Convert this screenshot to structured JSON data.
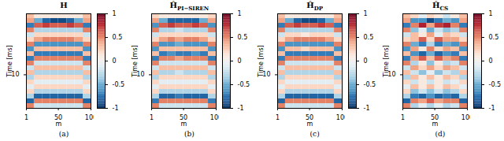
{
  "chart_data": [
    {
      "type": "heatmap",
      "title": "H",
      "title_subscript": "",
      "caption": "(a)",
      "xlabel": "m",
      "ylabel": "Time [ms]",
      "xlim": [
        1,
        100
      ],
      "xticks": [
        1,
        50,
        100
      ],
      "ylim": [
        0,
        15.5
      ],
      "yticks": [
        10
      ],
      "x_bins": [
        1,
        13,
        26,
        38,
        50,
        63,
        75,
        88,
        100
      ],
      "y_bins": [
        0,
        0.775,
        1.55,
        2.325,
        3.1,
        3.875,
        4.65,
        5.425,
        6.2,
        6.975,
        7.75,
        8.525,
        9.3,
        10.075,
        10.85,
        11.625,
        12.4,
        13.175,
        13.95,
        14.725,
        15.5
      ],
      "values": [
        [
          0.3,
          0.1,
          0.1,
          0.1,
          0.1,
          0.1,
          0.1,
          0.3
        ],
        [
          0.4,
          -0.5,
          -0.8,
          -0.9,
          -0.9,
          -0.8,
          -0.5,
          0.4
        ],
        [
          -0.7,
          0.6,
          0.7,
          0.6,
          0.6,
          0.7,
          0.6,
          -0.7
        ],
        [
          0.5,
          -0.3,
          -0.3,
          -0.3,
          -0.3,
          -0.3,
          -0.3,
          0.5
        ],
        [
          -0.2,
          0.2,
          0.2,
          0.2,
          0.2,
          0.2,
          0.2,
          -0.2
        ],
        [
          0.2,
          0.4,
          0.5,
          0.5,
          0.5,
          0.5,
          0.4,
          0.2
        ],
        [
          0.5,
          -0.6,
          -0.6,
          -0.6,
          -0.6,
          -0.6,
          -0.6,
          0.5
        ],
        [
          -0.6,
          0.3,
          0.3,
          0.3,
          0.3,
          0.3,
          0.3,
          -0.6
        ],
        [
          0.3,
          -0.7,
          -0.7,
          -0.7,
          -0.7,
          -0.7,
          -0.7,
          0.3
        ],
        [
          -0.7,
          0.5,
          0.5,
          0.5,
          0.5,
          0.5,
          0.5,
          -0.7
        ],
        [
          0.5,
          -0.2,
          -0.2,
          -0.2,
          -0.2,
          -0.2,
          -0.2,
          0.5
        ],
        [
          -0.2,
          0.3,
          0.3,
          0.3,
          0.3,
          0.3,
          0.3,
          -0.2
        ],
        [
          0.3,
          -0.3,
          -0.3,
          -0.3,
          -0.3,
          -0.3,
          -0.3,
          0.3
        ],
        [
          -0.3,
          0.2,
          0.2,
          0.2,
          0.2,
          0.2,
          0.2,
          -0.3
        ],
        [
          0.2,
          -0.1,
          -0.1,
          -0.1,
          -0.1,
          -0.1,
          -0.1,
          0.2
        ],
        [
          -0.1,
          0.2,
          0.2,
          0.2,
          0.2,
          0.2,
          0.2,
          -0.1
        ],
        [
          0.2,
          -0.3,
          -0.3,
          -0.3,
          -0.3,
          -0.3,
          -0.3,
          0.2
        ],
        [
          -0.3,
          -0.8,
          -0.8,
          -0.8,
          -0.8,
          -0.8,
          -0.8,
          -0.3
        ],
        [
          -0.8,
          0.5,
          0.5,
          0.5,
          0.5,
          0.5,
          0.5,
          -0.8
        ],
        [
          0.5,
          -0.2,
          -0.2,
          -0.2,
          -0.2,
          -0.2,
          -0.2,
          0.5
        ]
      ],
      "colorbar": {
        "range": [
          -1,
          1
        ],
        "ticks": [
          -1,
          -0.5,
          0,
          0.5,
          1
        ]
      }
    },
    {
      "type": "heatmap",
      "title": "Ĥ",
      "title_subscript": "PI−SIREN",
      "caption": "(b)",
      "xlabel": "m",
      "ylabel": "Time [ms]",
      "xlim": [
        1,
        100
      ],
      "xticks": [
        1,
        50,
        100
      ],
      "ylim": [
        0,
        15.5
      ],
      "yticks": [
        10
      ],
      "x_bins": [
        1,
        13,
        26,
        38,
        50,
        63,
        75,
        88,
        100
      ],
      "y_bins": [
        0,
        0.775,
        1.55,
        2.325,
        3.1,
        3.875,
        4.65,
        5.425,
        6.2,
        6.975,
        7.75,
        8.525,
        9.3,
        10.075,
        10.85,
        11.625,
        12.4,
        13.175,
        13.95,
        14.725,
        15.5
      ],
      "values": [
        [
          0.2,
          0.1,
          0.1,
          0.1,
          0.1,
          0.1,
          0.1,
          0.2
        ],
        [
          0.4,
          -0.5,
          -0.8,
          -0.8,
          -0.8,
          -0.8,
          -0.5,
          0.4
        ],
        [
          -0.6,
          0.6,
          0.7,
          0.6,
          0.6,
          0.7,
          0.6,
          -0.6
        ],
        [
          0.5,
          -0.3,
          -0.3,
          -0.2,
          -0.3,
          -0.3,
          -0.3,
          0.5
        ],
        [
          -0.2,
          0.2,
          0.2,
          0.2,
          0.2,
          0.2,
          0.2,
          -0.2
        ],
        [
          0.2,
          0.4,
          0.5,
          0.4,
          0.5,
          0.5,
          0.4,
          0.2
        ],
        [
          0.5,
          -0.6,
          -0.6,
          -0.5,
          -0.6,
          -0.6,
          -0.6,
          0.5
        ],
        [
          -0.6,
          0.3,
          0.3,
          0.3,
          0.3,
          0.3,
          0.3,
          -0.6
        ],
        [
          0.3,
          -0.7,
          -0.6,
          -0.7,
          -0.7,
          -0.6,
          -0.7,
          0.3
        ],
        [
          -0.7,
          0.5,
          0.5,
          0.4,
          0.5,
          0.5,
          0.5,
          -0.7
        ],
        [
          0.5,
          -0.2,
          -0.2,
          -0.2,
          -0.2,
          -0.2,
          -0.2,
          0.5
        ],
        [
          -0.2,
          0.3,
          0.3,
          0.3,
          0.3,
          0.3,
          0.3,
          -0.2
        ],
        [
          0.3,
          -0.3,
          -0.3,
          -0.2,
          -0.3,
          -0.3,
          -0.3,
          0.3
        ],
        [
          -0.3,
          0.2,
          0.2,
          0.2,
          0.2,
          0.2,
          0.2,
          -0.3
        ],
        [
          0.2,
          -0.1,
          -0.1,
          -0.1,
          -0.1,
          -0.1,
          -0.1,
          0.2
        ],
        [
          -0.1,
          0.2,
          0.2,
          0.2,
          0.2,
          0.2,
          0.2,
          -0.1
        ],
        [
          0.2,
          -0.3,
          -0.3,
          -0.3,
          -0.3,
          -0.3,
          -0.3,
          0.2
        ],
        [
          -0.3,
          -0.8,
          -0.8,
          -0.7,
          -0.8,
          -0.8,
          -0.8,
          -0.3
        ],
        [
          -0.7,
          0.5,
          0.5,
          0.5,
          0.5,
          0.5,
          0.5,
          -0.7
        ],
        [
          0.5,
          -0.2,
          -0.2,
          -0.2,
          -0.2,
          -0.2,
          -0.2,
          0.5
        ]
      ],
      "colorbar": {
        "range": [
          -1,
          1
        ],
        "ticks": [
          -1,
          -0.5,
          0,
          0.5,
          1
        ]
      }
    },
    {
      "type": "heatmap",
      "title": "Ĥ",
      "title_subscript": "DP",
      "caption": "(c)",
      "xlabel": "m",
      "ylabel": "Time [ms]",
      "xlim": [
        1,
        100
      ],
      "xticks": [
        1,
        50,
        100
      ],
      "ylim": [
        0,
        15.5
      ],
      "yticks": [
        10
      ],
      "x_bins": [
        1,
        13,
        26,
        38,
        50,
        63,
        75,
        88,
        100
      ],
      "y_bins": [
        0,
        0.775,
        1.55,
        2.325,
        3.1,
        3.875,
        4.65,
        5.425,
        6.2,
        6.975,
        7.75,
        8.525,
        9.3,
        10.075,
        10.85,
        11.625,
        12.4,
        13.175,
        13.95,
        14.725,
        15.5
      ],
      "values": [
        [
          0.3,
          0.1,
          0.1,
          0.1,
          0.1,
          0.1,
          0.1,
          0.3
        ],
        [
          0.4,
          -0.5,
          -0.8,
          -0.9,
          -0.9,
          -0.8,
          -0.5,
          0.4
        ],
        [
          -0.7,
          0.6,
          0.7,
          0.6,
          0.6,
          0.7,
          0.6,
          -0.7
        ],
        [
          0.5,
          -0.3,
          -0.3,
          -0.3,
          -0.3,
          -0.3,
          -0.3,
          0.5
        ],
        [
          -0.2,
          0.2,
          0.2,
          0.1,
          0.2,
          0.2,
          0.2,
          -0.2
        ],
        [
          0.2,
          0.4,
          0.5,
          0.5,
          0.5,
          0.5,
          0.4,
          0.2
        ],
        [
          0.5,
          -0.6,
          -0.6,
          -0.6,
          -0.6,
          -0.6,
          -0.6,
          0.5
        ],
        [
          -0.6,
          0.3,
          0.3,
          0.2,
          0.3,
          0.3,
          0.3,
          -0.6
        ],
        [
          0.3,
          -0.7,
          -0.7,
          -0.7,
          -0.7,
          -0.7,
          -0.7,
          0.3
        ],
        [
          -0.7,
          0.5,
          0.5,
          0.5,
          0.5,
          0.5,
          0.5,
          -0.7
        ],
        [
          0.5,
          -0.2,
          -0.2,
          -0.2,
          -0.2,
          -0.2,
          -0.2,
          0.5
        ],
        [
          -0.2,
          0.3,
          0.3,
          0.3,
          0.3,
          0.3,
          0.3,
          -0.2
        ],
        [
          0.3,
          -0.3,
          -0.3,
          -0.3,
          -0.3,
          -0.3,
          -0.3,
          0.3
        ],
        [
          -0.3,
          0.2,
          0.2,
          0.2,
          0.2,
          0.2,
          0.2,
          -0.3
        ],
        [
          0.2,
          -0.1,
          -0.1,
          -0.1,
          -0.1,
          -0.1,
          -0.1,
          0.2
        ],
        [
          -0.1,
          0.2,
          0.2,
          0.2,
          0.2,
          0.2,
          0.2,
          -0.1
        ],
        [
          0.2,
          -0.3,
          -0.3,
          -0.3,
          -0.3,
          -0.3,
          -0.3,
          0.2
        ],
        [
          -0.3,
          -0.8,
          -0.8,
          -0.8,
          -0.8,
          -0.8,
          -0.8,
          -0.3
        ],
        [
          -0.8,
          0.5,
          0.5,
          0.5,
          0.5,
          0.5,
          0.5,
          -0.8
        ],
        [
          0.5,
          -0.2,
          -0.2,
          -0.2,
          -0.2,
          -0.2,
          -0.2,
          0.5
        ]
      ],
      "colorbar": {
        "range": [
          -1,
          1
        ],
        "ticks": [
          -1,
          -0.5,
          0,
          0.5,
          1
        ]
      }
    },
    {
      "type": "heatmap",
      "title": "Ĥ",
      "title_subscript": "CS",
      "caption": "(d)",
      "xlabel": "m",
      "ylabel": "Time [ms]",
      "xlim": [
        1,
        100
      ],
      "xticks": [
        1,
        50,
        100
      ],
      "ylim": [
        0,
        15.5
      ],
      "yticks": [
        10
      ],
      "x_bins": [
        1,
        13,
        26,
        38,
        50,
        63,
        75,
        88,
        100
      ],
      "y_bins": [
        0,
        0.775,
        1.55,
        2.325,
        3.1,
        3.875,
        4.65,
        5.425,
        6.2,
        6.975,
        7.75,
        8.525,
        9.3,
        10.075,
        10.85,
        11.625,
        12.4,
        13.175,
        13.95,
        14.725,
        15.5
      ],
      "values": [
        [
          0.3,
          0.2,
          -0.1,
          0.2,
          0.1,
          -0.2,
          0.1,
          0.3
        ],
        [
          0.4,
          -0.6,
          -0.6,
          -0.9,
          -0.7,
          -0.5,
          -0.6,
          0.4
        ],
        [
          -0.7,
          0.5,
          0.8,
          0.4,
          0.7,
          0.8,
          0.5,
          -0.7
        ],
        [
          0.5,
          -0.4,
          -0.1,
          -0.5,
          -0.2,
          -0.4,
          -0.3,
          0.5
        ],
        [
          -0.2,
          0.3,
          0.1,
          0.4,
          -0.1,
          0.3,
          0.2,
          -0.2
        ],
        [
          0.2,
          0.3,
          0.6,
          0.2,
          0.6,
          0.4,
          0.4,
          0.2
        ],
        [
          0.5,
          -0.5,
          -0.7,
          -0.3,
          -0.7,
          -0.5,
          -0.6,
          0.5
        ],
        [
          -0.6,
          0.4,
          0.1,
          0.5,
          0.2,
          0.4,
          0.3,
          -0.6
        ],
        [
          0.3,
          -0.6,
          -0.8,
          -0.5,
          -0.8,
          -0.6,
          -0.7,
          0.3
        ],
        [
          -0.7,
          0.4,
          0.6,
          0.3,
          0.6,
          0.4,
          0.5,
          -0.7
        ],
        [
          0.5,
          -0.3,
          0.1,
          -0.4,
          0.1,
          -0.3,
          -0.2,
          0.5
        ],
        [
          -0.2,
          0.4,
          0.2,
          0.4,
          0.2,
          0.4,
          0.3,
          -0.2
        ],
        [
          0.3,
          -0.2,
          -0.4,
          -0.1,
          -0.4,
          -0.2,
          -0.3,
          0.3
        ],
        [
          -0.3,
          0.3,
          0.1,
          0.3,
          0.1,
          0.3,
          0.2,
          -0.3
        ],
        [
          0.2,
          -0.2,
          0.1,
          -0.2,
          0.1,
          -0.2,
          -0.1,
          0.2
        ],
        [
          -0.1,
          0.3,
          0.1,
          0.3,
          0.1,
          0.3,
          0.2,
          -0.1
        ],
        [
          0.2,
          -0.4,
          -0.2,
          -0.4,
          -0.2,
          -0.4,
          -0.3,
          0.2
        ],
        [
          -0.3,
          -0.7,
          -0.8,
          -0.6,
          -0.8,
          -0.7,
          -0.8,
          -0.3
        ],
        [
          -0.8,
          0.5,
          0.4,
          0.6,
          0.4,
          0.5,
          0.5,
          -0.8
        ],
        [
          0.5,
          -0.3,
          -0.1,
          -0.3,
          -0.1,
          -0.3,
          -0.2,
          0.5
        ]
      ],
      "colorbar": {
        "range": [
          -1,
          1
        ],
        "ticks": [
          -1,
          -0.5,
          0,
          0.5,
          1
        ]
      }
    }
  ]
}
